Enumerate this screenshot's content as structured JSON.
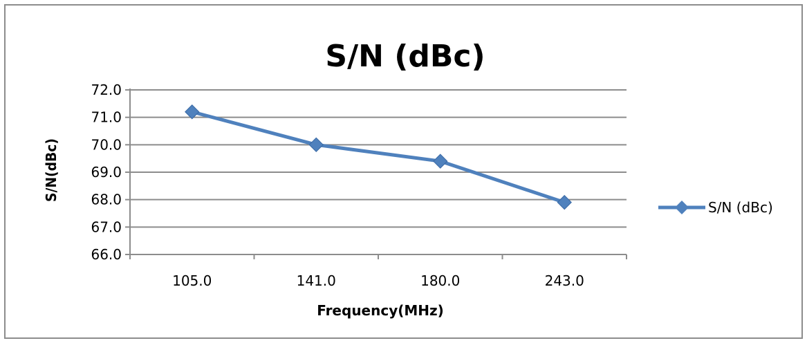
{
  "chart_data": {
    "type": "line",
    "title": "S/N (dBc)",
    "xlabel": "Frequency(MHz)",
    "ylabel": "S/N(dBc)",
    "categories": [
      "105.0",
      "141.0",
      "180.0",
      "243.0"
    ],
    "series": [
      {
        "name": "S/N (dBc)",
        "values": [
          71.2,
          70.0,
          69.4,
          67.9
        ],
        "color": "#4f81bd",
        "marker": "diamond"
      }
    ],
    "ylim": [
      66.0,
      72.0
    ],
    "ystep": 1.0,
    "yticks": [
      "66.0",
      "67.0",
      "68.0",
      "69.0",
      "70.0",
      "71.0",
      "72.0"
    ],
    "grid": "horizontal",
    "legend": "right"
  }
}
